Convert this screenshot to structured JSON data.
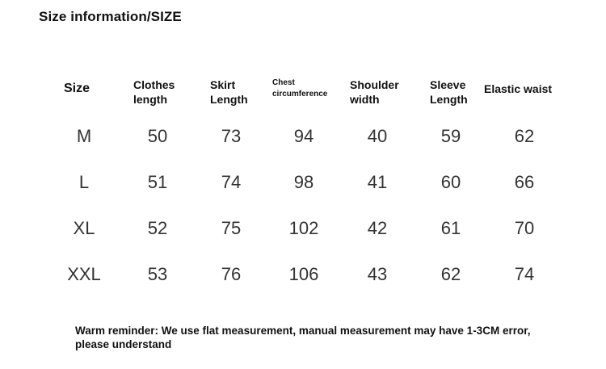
{
  "title": "Size information/SIZE",
  "headers": {
    "size": "Size",
    "clothes_1": "Clothes",
    "clothes_2": "length",
    "skirt_1": "Skirt",
    "skirt_2": "Length",
    "chest_1": "Chest",
    "chest_2": "circumference",
    "shoulder_1": "Shoulder",
    "shoulder_2": "width",
    "sleeve_1": "Sleeve",
    "sleeve_2": "Length",
    "waist": "Elastic waist"
  },
  "rows": [
    {
      "size": "M",
      "clothes": "50",
      "skirt": "73",
      "chest": "94",
      "shoulder": "40",
      "sleeve": "59",
      "waist": "62"
    },
    {
      "size": "L",
      "clothes": "51",
      "skirt": "74",
      "chest": "98",
      "shoulder": "41",
      "sleeve": "60",
      "waist": "66"
    },
    {
      "size": "XL",
      "clothes": "52",
      "skirt": "75",
      "chest": "102",
      "shoulder": "42",
      "sleeve": "61",
      "waist": "70"
    },
    {
      "size": "XXL",
      "clothes": "53",
      "skirt": "76",
      "chest": "106",
      "shoulder": "43",
      "sleeve": "62",
      "waist": "74"
    }
  ],
  "note": "Warm reminder: We use flat measurement, manual measurement may have 1-3CM error, please understand"
}
